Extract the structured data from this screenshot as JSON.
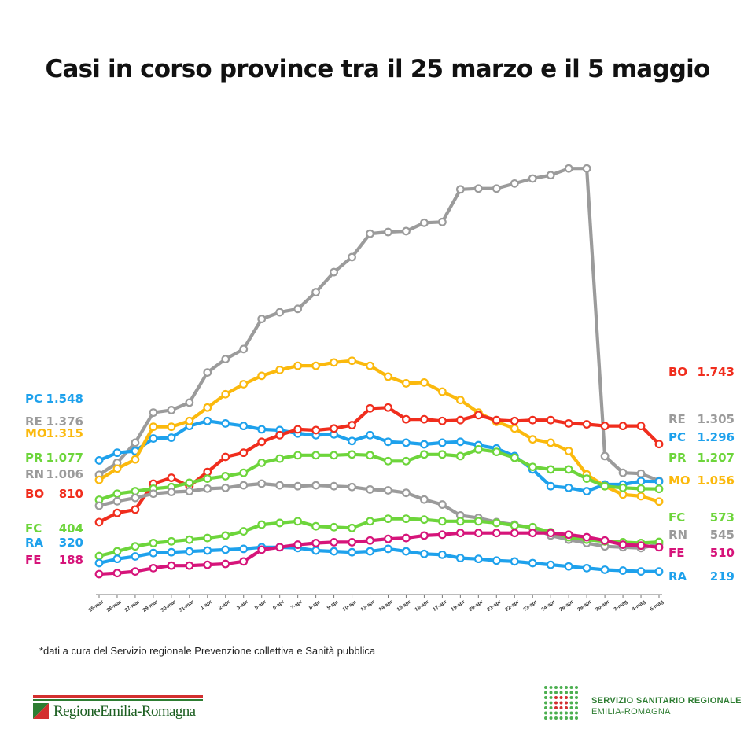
{
  "chart_data": {
    "type": "line",
    "title": "Casi in corso province tra il 25 marzo e il 5 maggio",
    "xlabel": "",
    "ylabel": "",
    "grid": false,
    "categories": [
      "25-mar",
      "26-mar",
      "27-mar",
      "29-mar",
      "30-mar",
      "31-mar",
      "1-apr",
      "2-apr",
      "3-apr",
      "5-apr",
      "6-apr",
      "7-apr",
      "8-apr",
      "9-apr",
      "10-apr",
      "13-apr",
      "14-apr",
      "15-apr",
      "16-apr",
      "17-apr",
      "19-apr",
      "20-apr",
      "21-apr",
      "22-apr",
      "23-apr",
      "24-apr",
      "26-apr",
      "28-apr",
      "30-apr",
      "3-mag",
      "4-mag",
      "5-mag"
    ],
    "series": [
      {
        "name": "RE",
        "color": "#9b9b9b",
        "start_label": "1.376",
        "end_label": "1.305",
        "values": [
          1376,
          1520,
          1760,
          2120,
          2150,
          2240,
          2600,
          2760,
          2880,
          3240,
          3320,
          3360,
          3560,
          3800,
          3980,
          4260,
          4280,
          4290,
          4390,
          4400,
          4790,
          4800,
          4800,
          4860,
          4920,
          4960,
          5040,
          5040,
          1600,
          1400,
          1390,
          1305
        ]
      },
      {
        "name": "PC",
        "color": "#1ea1ec",
        "start_label": "1.548",
        "end_label": "1.296",
        "values": [
          1548,
          1640,
          1660,
          1810,
          1820,
          1960,
          2020,
          1990,
          1960,
          1920,
          1910,
          1870,
          1850,
          1860,
          1780,
          1850,
          1770,
          1760,
          1740,
          1760,
          1770,
          1730,
          1690,
          1600,
          1440,
          1240,
          1220,
          1180,
          1260,
          1260,
          1300,
          1296
        ]
      },
      {
        "name": "MO",
        "color": "#fbb90d",
        "start_label": "1.315",
        "end_label": "1.056",
        "values": [
          1315,
          1450,
          1560,
          1950,
          1950,
          2020,
          2180,
          2340,
          2460,
          2560,
          2630,
          2680,
          2680,
          2720,
          2740,
          2680,
          2550,
          2470,
          2480,
          2370,
          2270,
          2120,
          2010,
          1930,
          1800,
          1760,
          1660,
          1380,
          1240,
          1140,
          1120,
          1056
        ]
      },
      {
        "name": "BO",
        "color": "#f02d1d",
        "start_label": "810",
        "end_label": "1.743",
        "values": [
          810,
          920,
          960,
          1270,
          1340,
          1240,
          1410,
          1590,
          1640,
          1770,
          1850,
          1920,
          1910,
          1930,
          1970,
          2170,
          2180,
          2040,
          2040,
          2020,
          2030,
          2090,
          2030,
          2020,
          2030,
          2030,
          1990,
          1980,
          1960,
          1960,
          1960,
          1743
        ]
      },
      {
        "name": "PR",
        "color": "#6dd53b",
        "start_label": "1.077",
        "end_label": "1.207",
        "values": [
          1077,
          1150,
          1180,
          1210,
          1230,
          1280,
          1330,
          1360,
          1400,
          1520,
          1570,
          1610,
          1610,
          1610,
          1620,
          1610,
          1540,
          1540,
          1620,
          1620,
          1600,
          1680,
          1650,
          1580,
          1470,
          1440,
          1440,
          1330,
          1240,
          1220,
          1210,
          1207
        ]
      },
      {
        "name": "RN",
        "color": "#9b9b9b",
        "start_label": "1.006",
        "end_label": "545",
        "values": [
          1006,
          1060,
          1100,
          1150,
          1170,
          1180,
          1210,
          1220,
          1250,
          1270,
          1250,
          1240,
          1250,
          1240,
          1230,
          1200,
          1190,
          1160,
          1080,
          1020,
          890,
          860,
          810,
          780,
          740,
          650,
          600,
          560,
          520,
          510,
          500,
          545
        ]
      },
      {
        "name": "FC",
        "color": "#6dd53b",
        "start_label": "404",
        "end_label": "573",
        "values": [
          404,
          460,
          520,
          560,
          580,
          600,
          620,
          650,
          700,
          780,
          800,
          820,
          760,
          750,
          740,
          820,
          850,
          850,
          840,
          820,
          820,
          820,
          800,
          770,
          750,
          690,
          630,
          600,
          580,
          570,
          560,
          573
        ]
      },
      {
        "name": "RA",
        "color": "#1ea1ec",
        "start_label": "320",
        "end_label": "219",
        "values": [
          320,
          370,
          400,
          440,
          450,
          460,
          470,
          480,
          490,
          510,
          510,
          500,
          470,
          460,
          450,
          460,
          490,
          460,
          430,
          420,
          380,
          370,
          350,
          340,
          320,
          300,
          280,
          260,
          240,
          230,
          220,
          219
        ]
      },
      {
        "name": "FE",
        "color": "#d6147a",
        "start_label": "188",
        "end_label": "510",
        "values": [
          188,
          200,
          220,
          260,
          290,
          290,
          300,
          310,
          340,
          480,
          510,
          540,
          560,
          570,
          570,
          590,
          610,
          620,
          650,
          660,
          680,
          680,
          680,
          680,
          680,
          680,
          660,
          630,
          590,
          540,
          530,
          510
        ]
      }
    ]
  },
  "footnote": "*dati a cura del Servizio regionale Prevenzione collettiva e Sanità pubblica",
  "logo_left": {
    "text": "RegioneEmilia-Romagna"
  },
  "logo_right": {
    "line1": "SERVIZIO SANITARIO REGIONALE",
    "line2": "EMILIA-ROMAGNA"
  }
}
